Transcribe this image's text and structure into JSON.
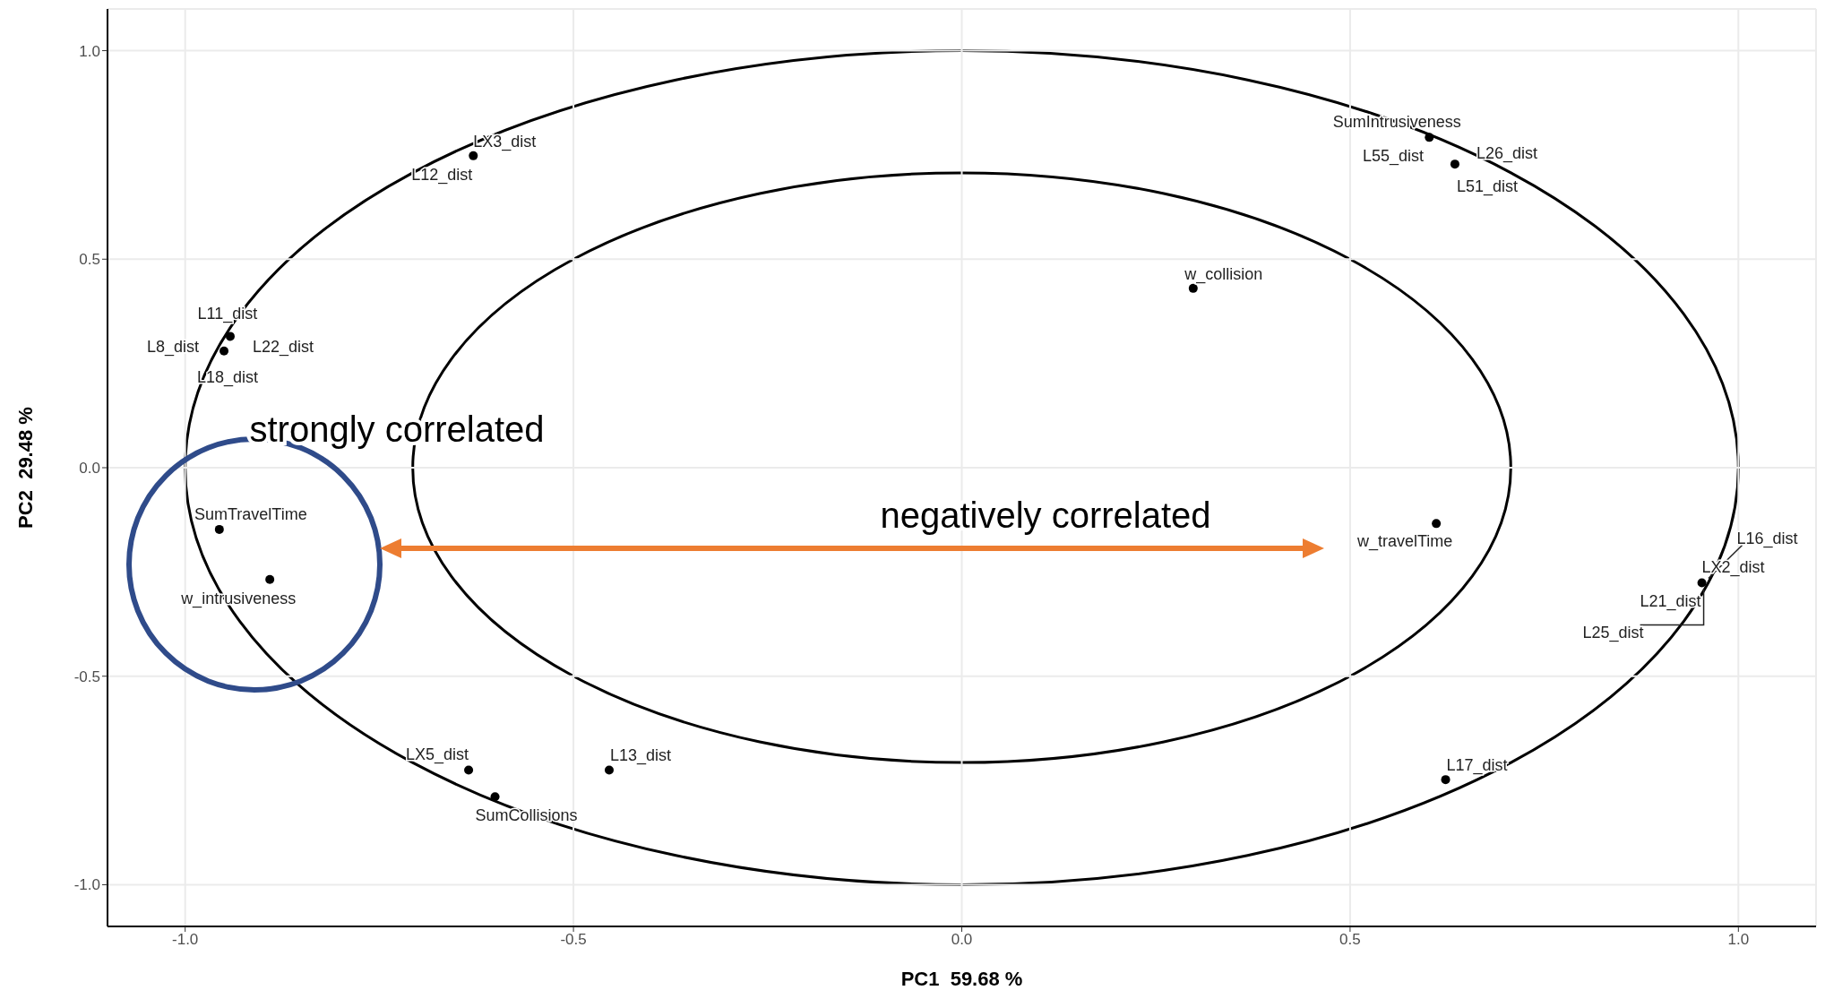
{
  "chart_data": {
    "type": "scatter",
    "xlabel": "PC1  59.68 %",
    "ylabel": "PC2  29.48 %",
    "xlim": [
      -1.1,
      1.1
    ],
    "ylim": [
      -1.1,
      1.1
    ],
    "xticks": [
      {
        "value": -1,
        "label": "-1.0"
      },
      {
        "value": -0.5,
        "label": "-0.5"
      },
      {
        "value": 0,
        "label": "0.0"
      },
      {
        "value": 0.5,
        "label": "0.5"
      },
      {
        "value": 1,
        "label": "1.0"
      }
    ],
    "yticks": [
      {
        "value": -1,
        "label": "-1.0"
      },
      {
        "value": -0.5,
        "label": "-0.5"
      },
      {
        "value": 0,
        "label": "0.0"
      },
      {
        "value": 0.5,
        "label": "0.5"
      },
      {
        "value": 1,
        "label": "1.0"
      }
    ],
    "grid": true,
    "series": [
      {
        "color": "#000000",
        "marker": "circle",
        "x": [
          -0.629,
          0.602,
          0.635,
          0.298,
          -0.942,
          -0.95,
          -0.956,
          -0.891,
          0.611,
          0.953,
          -0.635,
          -0.601,
          -0.454,
          0.623
        ],
        "values": [
          0.748,
          0.792,
          0.728,
          0.43,
          0.315,
          0.28,
          -0.148,
          -0.268,
          -0.134,
          -0.276,
          -0.725,
          -0.789,
          -0.725,
          -0.748
        ]
      }
    ],
    "annotations": [
      {
        "text": "LX3_dist",
        "x": -0.629,
        "y": 0.748
      },
      {
        "text": "L12_dist",
        "x": -0.629,
        "y": 0.748
      },
      {
        "text": "SumIntrusiveness",
        "x": 0.602,
        "y": 0.792
      },
      {
        "text": "L55_dist",
        "x": 0.635,
        "y": 0.728
      },
      {
        "text": "L26_dist",
        "x": 0.635,
        "y": 0.728
      },
      {
        "text": "L51_dist",
        "x": 0.635,
        "y": 0.728
      },
      {
        "text": "w_collision",
        "x": 0.298,
        "y": 0.43
      },
      {
        "text": "L11_dist",
        "x": -0.942,
        "y": 0.315
      },
      {
        "text": "L8_dist",
        "x": -0.95,
        "y": 0.28
      },
      {
        "text": "L22_dist",
        "x": -0.95,
        "y": 0.28
      },
      {
        "text": "L18_dist",
        "x": -0.95,
        "y": 0.28
      },
      {
        "text": "SumTravelTime",
        "x": -0.956,
        "y": -0.148
      },
      {
        "text": "w_intrusiveness",
        "x": -0.891,
        "y": -0.268
      },
      {
        "text": "w_travelTime",
        "x": 0.611,
        "y": -0.134
      },
      {
        "text": "L16_dist",
        "x": 0.953,
        "y": -0.276
      },
      {
        "text": "LX2_dist",
        "x": 0.953,
        "y": -0.276
      },
      {
        "text": "L21_dist",
        "x": 0.953,
        "y": -0.276
      },
      {
        "text": "L25_dist",
        "x": 0.953,
        "y": -0.276
      },
      {
        "text": "LX5_dist",
        "x": -0.635,
        "y": -0.725
      },
      {
        "text": "SumCollisions",
        "x": -0.601,
        "y": -0.789
      },
      {
        "text": "L13_dist",
        "x": -0.454,
        "y": -0.725
      },
      {
        "text": "L17_dist",
        "x": 0.623,
        "y": -0.748
      },
      "strongly correlated",
      "negatively correlated"
    ]
  }
}
